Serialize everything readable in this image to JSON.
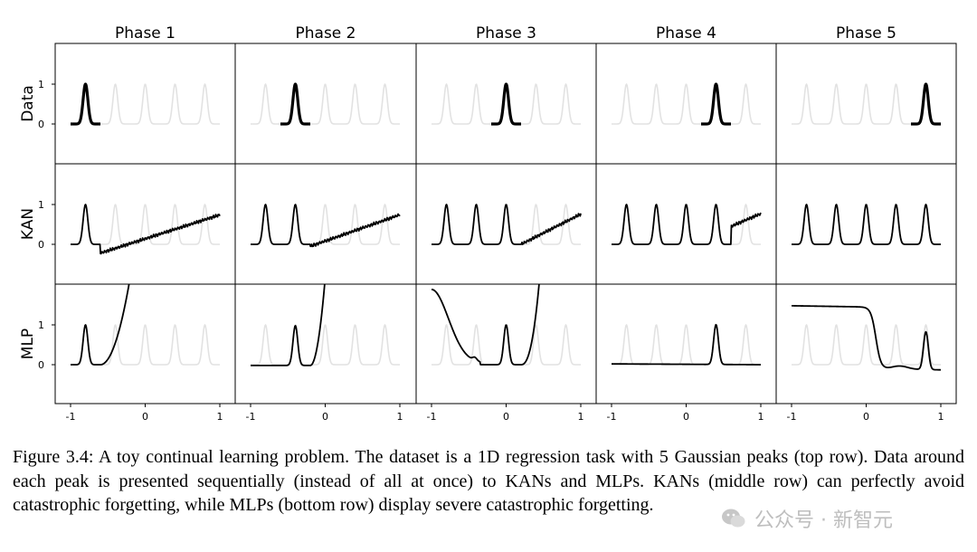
{
  "figure": {
    "phase_titles": [
      "Phase 1",
      "Phase 2",
      "Phase 3",
      "Phase 4",
      "Phase 5"
    ],
    "row_labels": [
      "Data",
      "KAN",
      "MLP"
    ],
    "y_ticks": [
      "1",
      "0"
    ],
    "x_ticks": [
      "-1",
      "0",
      "1"
    ]
  },
  "chart_data": {
    "type": "line",
    "title": "",
    "xlabel": "",
    "ylabel": "",
    "xlim": [
      -1,
      1
    ],
    "ylim": [
      -1,
      2
    ],
    "x_ticks": [
      -1,
      0,
      1
    ],
    "y_ticks": [
      0,
      1
    ],
    "grid": false,
    "panel_layout": "3 rows (Data, KAN, MLP) x 5 columns (Phase 1-5)",
    "peak_centers": [
      -0.8,
      -0.4,
      0.0,
      0.4,
      0.8
    ],
    "peak_height": 1,
    "colors": {
      "current": "#000000",
      "ghost": "#e2e2e2"
    },
    "panels": {
      "data": [
        {
          "phase": 1,
          "highlight_range": [
            -1.0,
            -0.6
          ]
        },
        {
          "phase": 2,
          "highlight_range": [
            -0.6,
            -0.2
          ]
        },
        {
          "phase": 3,
          "highlight_range": [
            -0.2,
            0.2
          ]
        },
        {
          "phase": 4,
          "highlight_range": [
            0.2,
            0.6
          ]
        },
        {
          "phase": 5,
          "highlight_range": [
            0.6,
            1.0
          ]
        }
      ],
      "kan": [
        {
          "phase": 1,
          "x": [
            -1.0,
            -0.8,
            -0.65,
            -0.6,
            -0.3,
            0.0,
            0.5,
            1.0
          ],
          "y": [
            0.0,
            1.0,
            0.0,
            -0.25,
            -0.12,
            0.05,
            0.4,
            0.75
          ]
        },
        {
          "phase": 2,
          "x": [
            -1.0,
            -0.8,
            -0.6,
            -0.4,
            -0.2,
            0.0,
            0.5,
            1.0
          ],
          "y": [
            0.0,
            1.0,
            0.0,
            1.0,
            0.0,
            -0.05,
            0.3,
            0.75
          ]
        },
        {
          "phase": 3,
          "x": [
            -1.0,
            -0.8,
            -0.6,
            -0.4,
            -0.2,
            0.0,
            0.2,
            0.5,
            1.0
          ],
          "y": [
            0.0,
            1.0,
            0.0,
            1.0,
            0.0,
            1.0,
            0.0,
            0.3,
            0.75
          ]
        },
        {
          "phase": 4,
          "x": [
            -1.0,
            -0.8,
            -0.4,
            0.0,
            0.4,
            0.6,
            1.0
          ],
          "y": [
            0.0,
            1.0,
            1.0,
            1.0,
            1.0,
            0.55,
            0.78
          ]
        },
        {
          "phase": 5,
          "x": [
            -1.0,
            -0.8,
            -0.4,
            0.0,
            0.4,
            0.8,
            1.0
          ],
          "y": [
            0.0,
            1.0,
            1.0,
            1.0,
            1.0,
            1.0,
            0.0
          ]
        }
      ],
      "mlp": [
        {
          "phase": 1,
          "x": [
            -1.0,
            -0.8,
            -0.6,
            -0.5,
            -0.4
          ],
          "y": [
            0.0,
            1.0,
            0.0,
            0.8,
            2.0
          ]
        },
        {
          "phase": 2,
          "x": [
            -1.0,
            -0.6,
            -0.4,
            -0.2,
            0.0
          ],
          "y": [
            -0.02,
            0.0,
            1.0,
            0.05,
            2.0
          ]
        },
        {
          "phase": 3,
          "x": [
            -1.0,
            -0.7,
            -0.5,
            -0.4,
            -0.3,
            0.0,
            0.3,
            0.5
          ],
          "y": [
            1.85,
            0.5,
            0.05,
            0.1,
            0.0,
            1.0,
            0.0,
            2.0
          ]
        },
        {
          "phase": 4,
          "x": [
            -1.0,
            0.0,
            0.3,
            0.4,
            0.5,
            1.0
          ],
          "y": [
            0.02,
            0.0,
            0.0,
            1.0,
            0.0,
            -0.02
          ]
        },
        {
          "phase": 5,
          "x": [
            -1.0,
            -0.2,
            0.0,
            0.2,
            0.5,
            0.8,
            1.0
          ],
          "y": [
            1.48,
            1.45,
            1.3,
            -0.1,
            -0.05,
            1.0,
            0.0
          ]
        }
      ]
    }
  },
  "caption": "Figure 3.4: A toy continual learning problem. The dataset is a 1D regression task with 5 Gaussian peaks (top row). Data around each peak is presented sequentially (instead of all at once) to KANs and MLPs. KANs (middle row) can perfectly avoid catastrophic forgetting, while MLPs (bottom row) display severe catastrophic forgetting.",
  "watermark": {
    "text": "公众号 · 新智元",
    "logo_icon": "wechat-logo-icon"
  }
}
